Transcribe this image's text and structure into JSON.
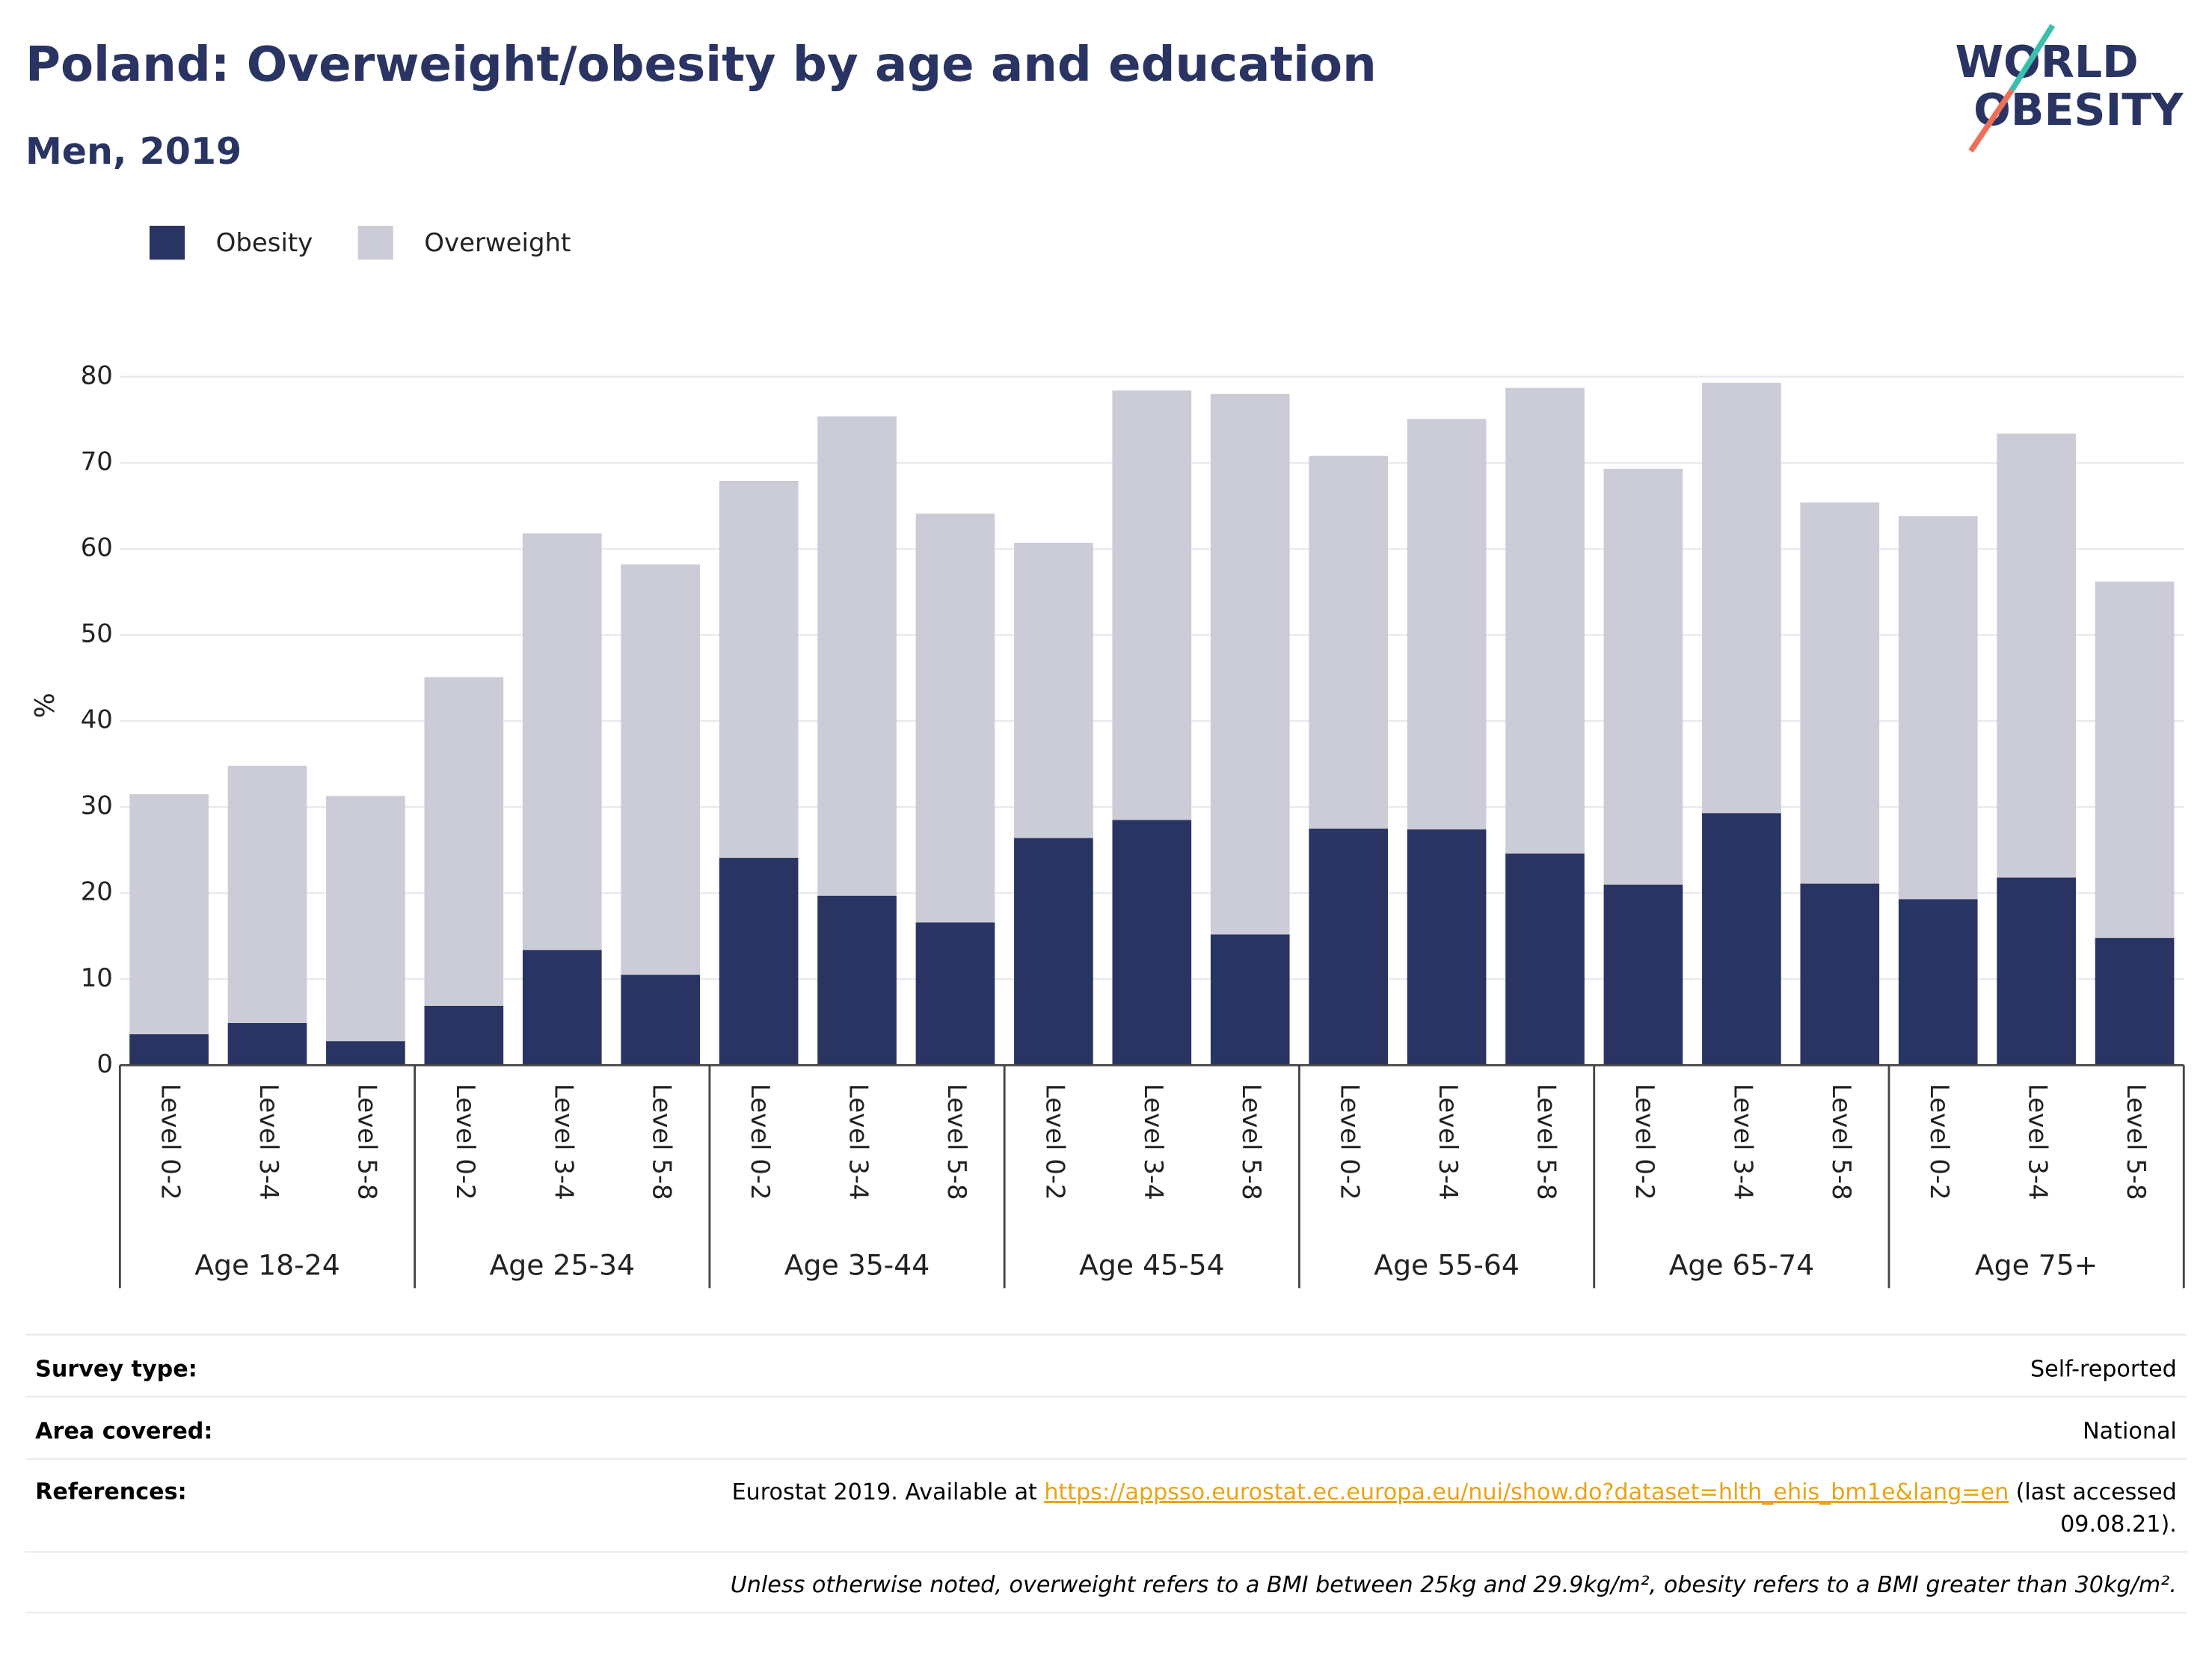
{
  "chart_data": {
    "type": "stacked_bar",
    "title": "Poland: Overweight/obesity by age and education",
    "subtitle": "Men, 2019",
    "y_label": "%",
    "logo": [
      "WORLD",
      "OBESITY"
    ],
    "categories": [
      "Level 0-2",
      "Level 3-4",
      "Level 5-8",
      "Level 0-2",
      "Level 3-4",
      "Level 5-8",
      "Level 0-2",
      "Level 3-4",
      "Level 5-8",
      "Level 0-2",
      "Level 3-4",
      "Level 5-8",
      "Level 0-2",
      "Level 3-4",
      "Level 5-8",
      "Level 0-2",
      "Level 3-4",
      "Level 5-8",
      "Level 0-2",
      "Level 3-4",
      "Level 5-8"
    ],
    "groups": [
      "Age 18-24",
      "Age 25-34",
      "Age 35-44",
      "Age 45-54",
      "Age 55-64",
      "Age 65-74",
      "Age 75+"
    ],
    "series": [
      {
        "name": "Obesity",
        "color": "#293462",
        "values": [
          3.6,
          4.9,
          2.8,
          6.9,
          13.4,
          10.5,
          24.1,
          19.7,
          16.6,
          26.4,
          28.5,
          15.2,
          27.5,
          27.4,
          24.6,
          21.0,
          29.3,
          21.1,
          19.3,
          21.8,
          14.8
        ]
      },
      {
        "name": "Overweight",
        "color": "#cbccd8",
        "values": [
          27.9,
          29.9,
          28.5,
          38.2,
          48.4,
          47.7,
          43.8,
          55.7,
          47.5,
          34.3,
          49.9,
          62.8,
          43.3,
          47.7,
          54.1,
          48.3,
          50.0,
          44.3,
          44.5,
          51.6,
          41.4
        ]
      }
    ],
    "ylim": [
      0,
      80
    ],
    "yticks": [
      0,
      10,
      20,
      30,
      40,
      50,
      60,
      70,
      80
    ],
    "grid": true
  },
  "info": {
    "rows": [
      {
        "label": "Survey type:",
        "value": "Self-reported"
      },
      {
        "label": "Area covered:",
        "value": "National"
      }
    ],
    "references": {
      "label": "References:",
      "text": "Eurostat 2019. Available at",
      "url": "https://appsso.eurostat.ec.europa.eu/nui/show.do?dataset=hlth_ehis_bm1e&lang=en",
      "note_line1": "(last accessed",
      "note_line2": "09.08.21)."
    },
    "footnote": "Unless otherwise noted, overweight refers to a BMI between 25kg and 29.9kg/m², obesity refers to a BMI greater than 30kg/m²."
  }
}
